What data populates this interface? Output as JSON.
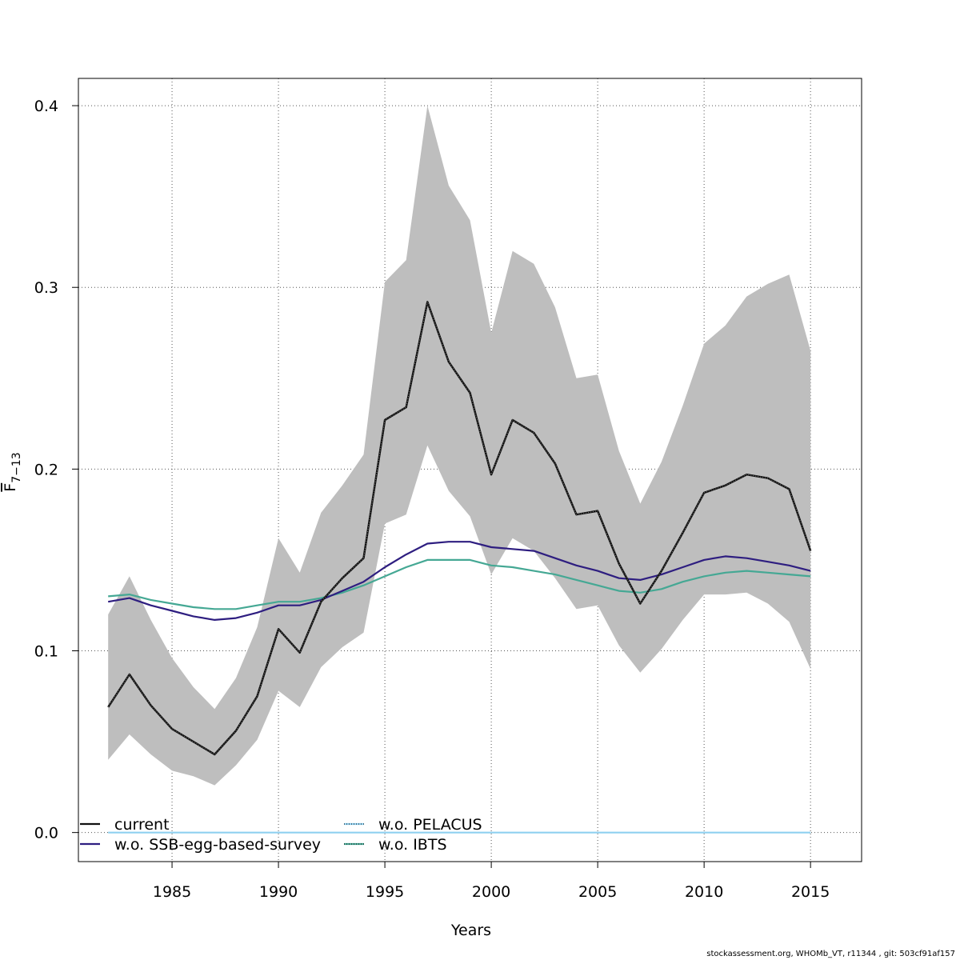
{
  "chart_data": {
    "type": "line",
    "title": "",
    "xlabel": "Years",
    "ylabel": "F",
    "ylabel_subscript": "7−13",
    "xlim": [
      1980.6,
      2017.4
    ],
    "ylim": [
      -0.016,
      0.415
    ],
    "x_ticks": [
      1985,
      1990,
      1995,
      2000,
      2005,
      2010,
      2015
    ],
    "y_ticks": [
      0.0,
      0.1,
      0.2,
      0.3,
      0.4
    ],
    "y_tick_labels": [
      "0.0",
      "0.1",
      "0.2",
      "0.3",
      "0.4"
    ],
    "grid": true,
    "legend_position": "bottom-left",
    "x": [
      1982,
      1983,
      1984,
      1985,
      1986,
      1987,
      1988,
      1989,
      1990,
      1991,
      1992,
      1993,
      1994,
      1995,
      1996,
      1997,
      1998,
      1999,
      2000,
      2001,
      2002,
      2003,
      2004,
      2005,
      2006,
      2007,
      2008,
      2009,
      2010,
      2011,
      2012,
      2013,
      2014,
      2015
    ],
    "band": {
      "color": "#bebebe",
      "lower": [
        0.04,
        0.054,
        0.043,
        0.034,
        0.031,
        0.026,
        0.037,
        0.051,
        0.078,
        0.069,
        0.091,
        0.102,
        0.11,
        0.17,
        0.175,
        0.213,
        0.188,
        0.174,
        0.142,
        0.162,
        0.155,
        0.14,
        0.123,
        0.125,
        0.103,
        0.088,
        0.101,
        0.117,
        0.131,
        0.131,
        0.132,
        0.126,
        0.116,
        0.09
      ],
      "upper": [
        0.12,
        0.141,
        0.117,
        0.096,
        0.08,
        0.068,
        0.085,
        0.113,
        0.162,
        0.143,
        0.176,
        0.191,
        0.208,
        0.303,
        0.315,
        0.4,
        0.356,
        0.337,
        0.275,
        0.32,
        0.313,
        0.289,
        0.25,
        0.252,
        0.21,
        0.181,
        0.204,
        0.235,
        0.269,
        0.279,
        0.295,
        0.302,
        0.307,
        0.265
      ]
    },
    "series": [
      {
        "name": "current",
        "color": "#111111",
        "dash": "dotted-thick",
        "values": [
          0.069,
          0.087,
          0.07,
          0.057,
          0.05,
          0.043,
          0.056,
          0.075,
          0.112,
          0.099,
          0.127,
          0.14,
          0.151,
          0.227,
          0.234,
          0.292,
          0.259,
          0.242,
          0.197,
          0.227,
          0.22,
          0.203,
          0.175,
          0.177,
          0.148,
          0.126,
          0.144,
          0.165,
          0.187,
          0.191,
          0.197,
          0.195,
          0.189,
          0.155
        ]
      },
      {
        "name": "w.o. SSB-egg-based-survey",
        "color": "#2e1e80",
        "dash": "solid",
        "values": [
          0.127,
          0.129,
          0.125,
          0.122,
          0.119,
          0.117,
          0.118,
          0.121,
          0.125,
          0.125,
          0.128,
          0.133,
          0.138,
          0.146,
          0.153,
          0.159,
          0.16,
          0.16,
          0.157,
          0.156,
          0.155,
          0.151,
          0.147,
          0.144,
          0.14,
          0.139,
          0.142,
          0.146,
          0.15,
          0.152,
          0.151,
          0.149,
          0.147,
          0.144
        ]
      },
      {
        "name": "w.o. PELACUS",
        "color": "#8fd0f0",
        "dash": "solid",
        "values": [
          0,
          0,
          0,
          0,
          0,
          0,
          0,
          0,
          0,
          0,
          0,
          0,
          0,
          0,
          0,
          0,
          0,
          0,
          0,
          0,
          0,
          0,
          0,
          0,
          0,
          0,
          0,
          0,
          0,
          0,
          0,
          0,
          0,
          0
        ]
      },
      {
        "name": "w.o. IBTS",
        "color": "#45a894",
        "dash": "solid",
        "values": [
          0.13,
          0.131,
          0.128,
          0.126,
          0.124,
          0.123,
          0.123,
          0.125,
          0.127,
          0.127,
          0.129,
          0.132,
          0.136,
          0.141,
          0.146,
          0.15,
          0.15,
          0.15,
          0.147,
          0.146,
          0.144,
          0.142,
          0.139,
          0.136,
          0.133,
          0.132,
          0.134,
          0.138,
          0.141,
          0.143,
          0.144,
          0.143,
          0.142,
          0.141
        ]
      }
    ],
    "legend": [
      {
        "label": "current",
        "color": "#111111"
      },
      {
        "label": "w.o. SSB-egg-based-survey",
        "color": "#2e1e80"
      },
      {
        "label": "w.o. PELACUS",
        "color": "#8fd0f0"
      },
      {
        "label": "w.o. IBTS",
        "color": "#45a894"
      }
    ]
  },
  "footer": "stockassessment.org, WHOMb_VT, r11344 , git: 503cf91af157"
}
